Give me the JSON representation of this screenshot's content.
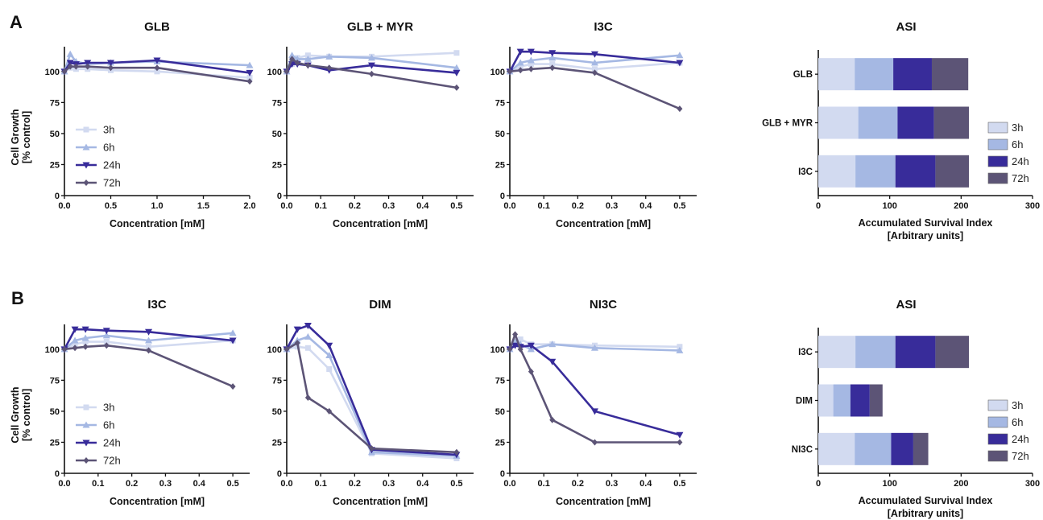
{
  "panel_labels": [
    "A",
    "B"
  ],
  "styles": {
    "3h": {
      "color": "#d2daf0",
      "marker": "square"
    },
    "6h": {
      "color": "#a5b8e3",
      "marker": "triangle-up"
    },
    "24h": {
      "color": "#382c9a",
      "marker": "triangle-down"
    },
    "72h": {
      "color": "#5c5476",
      "marker": "diamond"
    }
  },
  "chart_data": [
    {
      "type": "line",
      "panel": "A",
      "title": "GLB",
      "xlabel": "Concentration [mM]",
      "ylabel": "Cell Growth",
      "ylabel2": "[% control]",
      "xlim": [
        0,
        2.0
      ],
      "ylim": [
        0,
        120
      ],
      "xticks": [
        "0.0",
        "0.5",
        "1.0",
        "1.5",
        "2.0"
      ],
      "yticks": [
        "0",
        "25",
        "50",
        "75",
        "100"
      ],
      "legend": true,
      "legend_loc": "lower-left",
      "series": [
        {
          "name": "3h",
          "x": [
            0,
            0.0625,
            0.125,
            0.25,
            0.5,
            1.0,
            2.0
          ],
          "y": [
            100,
            103,
            102,
            102,
            101,
            100,
            95
          ]
        },
        {
          "name": "6h",
          "x": [
            0,
            0.0625,
            0.125,
            0.25,
            0.5,
            1.0,
            2.0
          ],
          "y": [
            100,
            114,
            108,
            106,
            107,
            108,
            105
          ]
        },
        {
          "name": "24h",
          "x": [
            0,
            0.0625,
            0.125,
            0.25,
            0.5,
            1.0,
            2.0
          ],
          "y": [
            100,
            107,
            106,
            107,
            107,
            109,
            99
          ]
        },
        {
          "name": "72h",
          "x": [
            0,
            0.0625,
            0.125,
            0.25,
            0.5,
            1.0,
            2.0
          ],
          "y": [
            100,
            104,
            104,
            104,
            103,
            103,
            92
          ]
        }
      ]
    },
    {
      "type": "line",
      "panel": "A",
      "title": "GLB + MYR",
      "xlabel": "Concentration [mM]",
      "xlim": [
        0,
        0.55
      ],
      "ylim": [
        0,
        120
      ],
      "xticks": [
        "0.0",
        "0.1",
        "0.2",
        "0.3",
        "0.4",
        "0.5"
      ],
      "yticks": [
        "0",
        "25",
        "50",
        "75",
        "100"
      ],
      "series": [
        {
          "name": "3h",
          "x": [
            0,
            0.015625,
            0.03125,
            0.0625,
            0.125,
            0.25,
            0.5
          ],
          "y": [
            100,
            106,
            111,
            113,
            112,
            112,
            115
          ]
        },
        {
          "name": "6h",
          "x": [
            0,
            0.015625,
            0.03125,
            0.0625,
            0.125,
            0.25,
            0.5
          ],
          "y": [
            100,
            113,
            110,
            110,
            112,
            111,
            103
          ]
        },
        {
          "name": "24h",
          "x": [
            0,
            0.015625,
            0.03125,
            0.0625,
            0.125,
            0.25,
            0.5
          ],
          "y": [
            100,
            106,
            106,
            105,
            101,
            105,
            99
          ]
        },
        {
          "name": "72h",
          "x": [
            0,
            0.015625,
            0.03125,
            0.0625,
            0.125,
            0.25,
            0.5
          ],
          "y": [
            100,
            110,
            107,
            105,
            103,
            98,
            87
          ]
        }
      ]
    },
    {
      "type": "line",
      "panel": "A",
      "title": "I3C",
      "xlabel": "Concentration [mM]",
      "xlim": [
        0,
        0.55
      ],
      "ylim": [
        0,
        120
      ],
      "xticks": [
        "0.0",
        "0.1",
        "0.2",
        "0.3",
        "0.4",
        "0.5"
      ],
      "yticks": [
        "0",
        "25",
        "50",
        "75",
        "100"
      ],
      "series": [
        {
          "name": "3h",
          "x": [
            0,
            0.03125,
            0.0625,
            0.125,
            0.25,
            0.5
          ],
          "y": [
            100,
            104,
            106,
            106,
            102,
            107
          ]
        },
        {
          "name": "6h",
          "x": [
            0,
            0.03125,
            0.0625,
            0.125,
            0.25,
            0.5
          ],
          "y": [
            100,
            107,
            109,
            111,
            107,
            113
          ]
        },
        {
          "name": "24h",
          "x": [
            0,
            0.03125,
            0.0625,
            0.125,
            0.25,
            0.5
          ],
          "y": [
            100,
            116,
            116,
            115,
            114,
            107
          ]
        },
        {
          "name": "72h",
          "x": [
            0,
            0.03125,
            0.0625,
            0.125,
            0.25,
            0.5
          ],
          "y": [
            100,
            101,
            102,
            103,
            99,
            70
          ]
        }
      ]
    },
    {
      "type": "bar",
      "orientation": "horizontal",
      "stacked": true,
      "panel": "A",
      "title": "ASI",
      "xlabel": "Accumulated Survival Index",
      "xlabel2": "[Arbitrary units]",
      "xlim": [
        0,
        300
      ],
      "xticks": [
        "0",
        "100",
        "200",
        "300"
      ],
      "categories": [
        "GLB",
        "GLB + MYR",
        "I3C"
      ],
      "legend": true,
      "legend_loc": "right",
      "series": [
        {
          "name": "3h",
          "values": [
            51,
            56,
            52
          ]
        },
        {
          "name": "6h",
          "values": [
            54,
            55,
            56
          ]
        },
        {
          "name": "24h",
          "values": [
            54,
            51,
            56
          ]
        },
        {
          "name": "72h",
          "values": [
            51,
            49,
            47
          ]
        }
      ]
    },
    {
      "type": "line",
      "panel": "B",
      "title": "I3C",
      "xlabel": "Concentration [mM]",
      "ylabel": "Cell Growth",
      "ylabel2": "[% control]",
      "xlim": [
        0,
        0.55
      ],
      "ylim": [
        0,
        120
      ],
      "xticks": [
        "0.0",
        "0.1",
        "0.2",
        "0.3",
        "0.4",
        "0.5"
      ],
      "yticks": [
        "0",
        "25",
        "50",
        "75",
        "100"
      ],
      "legend": true,
      "legend_loc": "lower-left",
      "series": [
        {
          "name": "3h",
          "x": [
            0,
            0.03125,
            0.0625,
            0.125,
            0.25,
            0.5
          ],
          "y": [
            100,
            104,
            106,
            106,
            102,
            107
          ]
        },
        {
          "name": "6h",
          "x": [
            0,
            0.03125,
            0.0625,
            0.125,
            0.25,
            0.5
          ],
          "y": [
            100,
            107,
            109,
            111,
            107,
            113
          ]
        },
        {
          "name": "24h",
          "x": [
            0,
            0.03125,
            0.0625,
            0.125,
            0.25,
            0.5
          ],
          "y": [
            100,
            116,
            116,
            115,
            114,
            107
          ]
        },
        {
          "name": "72h",
          "x": [
            0,
            0.03125,
            0.0625,
            0.125,
            0.25,
            0.5
          ],
          "y": [
            100,
            101,
            102,
            103,
            99,
            70
          ]
        }
      ]
    },
    {
      "type": "line",
      "panel": "B",
      "title": "DIM",
      "xlabel": "Concentration [mM]",
      "xlim": [
        0,
        0.55
      ],
      "ylim": [
        0,
        120
      ],
      "xticks": [
        "0.0",
        "0.1",
        "0.2",
        "0.3",
        "0.4",
        "0.5"
      ],
      "yticks": [
        "0",
        "25",
        "50",
        "75",
        "100"
      ],
      "series": [
        {
          "name": "3h",
          "x": [
            0,
            0.03125,
            0.0625,
            0.125,
            0.25,
            0.5
          ],
          "y": [
            100,
            102,
            101,
            84,
            16,
            12
          ]
        },
        {
          "name": "6h",
          "x": [
            0,
            0.03125,
            0.0625,
            0.125,
            0.25,
            0.5
          ],
          "y": [
            100,
            107,
            110,
            95,
            17,
            14
          ]
        },
        {
          "name": "24h",
          "x": [
            0,
            0.03125,
            0.0625,
            0.125,
            0.25,
            0.5
          ],
          "y": [
            100,
            116,
            119,
            103,
            19,
            15
          ]
        },
        {
          "name": "72h",
          "x": [
            0,
            0.03125,
            0.0625,
            0.125,
            0.25,
            0.5
          ],
          "y": [
            100,
            105,
            61,
            50,
            20,
            17
          ]
        }
      ]
    },
    {
      "type": "line",
      "panel": "B",
      "title": "NI3C",
      "xlabel": "Concentration [mM]",
      "xlim": [
        0,
        0.55
      ],
      "ylim": [
        0,
        120
      ],
      "xticks": [
        "0.0",
        "0.1",
        "0.2",
        "0.3",
        "0.4",
        "0.5"
      ],
      "yticks": [
        "0",
        "25",
        "50",
        "75",
        "100"
      ],
      "series": [
        {
          "name": "3h",
          "x": [
            0,
            0.015625,
            0.03125,
            0.0625,
            0.125,
            0.25,
            0.5
          ],
          "y": [
            100,
            104,
            108,
            104,
            104,
            103,
            102
          ]
        },
        {
          "name": "6h",
          "x": [
            0,
            0.015625,
            0.03125,
            0.0625,
            0.125,
            0.25,
            0.5
          ],
          "y": [
            100,
            106,
            104,
            100,
            104,
            101,
            99
          ]
        },
        {
          "name": "24h",
          "x": [
            0,
            0.015625,
            0.03125,
            0.0625,
            0.125,
            0.25,
            0.5
          ],
          "y": [
            100,
            103,
            102,
            103,
            90,
            50,
            31
          ]
        },
        {
          "name": "72h",
          "x": [
            0,
            0.015625,
            0.03125,
            0.0625,
            0.125,
            0.25,
            0.5
          ],
          "y": [
            100,
            112,
            100,
            82,
            43,
            25,
            25
          ]
        }
      ]
    },
    {
      "type": "bar",
      "orientation": "horizontal",
      "stacked": true,
      "panel": "B",
      "title": "ASI",
      "xlabel": "Accumulated Survival Index",
      "xlabel2": "[Arbitrary units]",
      "xlim": [
        0,
        300
      ],
      "xticks": [
        "0",
        "100",
        "200",
        "300"
      ],
      "categories": [
        "I3C",
        "DIM",
        "NI3C"
      ],
      "legend": true,
      "legend_loc": "right",
      "series": [
        {
          "name": "3h",
          "values": [
            52,
            21,
            51
          ]
        },
        {
          "name": "6h",
          "values": [
            56,
            24,
            51
          ]
        },
        {
          "name": "24h",
          "values": [
            56,
            27,
            31
          ]
        },
        {
          "name": "72h",
          "values": [
            47,
            18,
            21
          ]
        }
      ]
    }
  ]
}
